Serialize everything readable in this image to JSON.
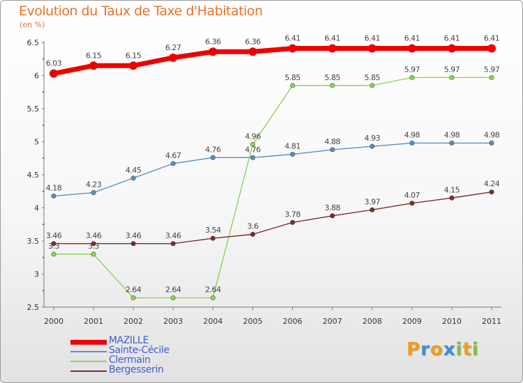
{
  "header": {
    "title": "Evolution du Taux de Taxe d'Habitation",
    "subtitle": "(en %)"
  },
  "logo": {
    "text": [
      "P",
      "r",
      "o",
      "x",
      "i",
      "t",
      "i"
    ],
    "colors": [
      "#f29a1d",
      "#3a8fd6",
      "#f29a1d",
      "#3a8fd6",
      "#7cc242",
      "#f29a1d",
      "#7cc242"
    ]
  },
  "chart_data": {
    "type": "line",
    "title": "Evolution du Taux de Taxe d'Habitation",
    "ylabel": "(en %)",
    "xlabel": "",
    "x": [
      "2000",
      "2001",
      "2002",
      "2003",
      "2004",
      "2005",
      "2006",
      "2007",
      "2008",
      "2009",
      "2010",
      "2011"
    ],
    "ylim": [
      2.5,
      6.5
    ],
    "yticks": [
      "2.5",
      "3",
      "3.5",
      "4",
      "4.5",
      "5",
      "5.5",
      "6",
      "6.5"
    ],
    "grid": false,
    "legend_position": "bottom-left",
    "series": [
      {
        "name": "MAZILLE",
        "color": "#ee0000",
        "highlight": true,
        "values": [
          6.03,
          6.15,
          6.15,
          6.27,
          6.36,
          6.36,
          6.41,
          6.41,
          6.41,
          6.41,
          6.41,
          6.41
        ],
        "labels": [
          "6.03",
          "6.15",
          "6.15",
          "6.27",
          "6.36",
          "6.36",
          "6.41",
          "6.41",
          "6.41",
          "6.41",
          "6.41",
          "6.41"
        ]
      },
      {
        "name": "Sainte-Cécile",
        "color": "#5b8fbf",
        "values": [
          4.18,
          4.23,
          4.45,
          4.67,
          4.76,
          4.76,
          4.81,
          4.88,
          4.93,
          4.98,
          4.98,
          4.98
        ],
        "labels": [
          "4.18",
          "4.23",
          "4.45",
          "4.67",
          "4.76",
          "4.76",
          "4.81",
          "4.88",
          "4.93",
          "4.98",
          "4.98",
          "4.98"
        ]
      },
      {
        "name": "Clermain",
        "color": "#8fd35a",
        "values": [
          3.3,
          3.3,
          2.64,
          2.64,
          2.64,
          4.96,
          5.85,
          5.85,
          5.85,
          5.97,
          5.97,
          5.97
        ],
        "labels": [
          "3.3",
          "3.3",
          "2.64",
          "2.64",
          "2.64",
          "4.96",
          "5.85",
          "5.85",
          "5.85",
          "5.97",
          "5.97",
          "5.97"
        ]
      },
      {
        "name": "Bergesserin",
        "color": "#7a2e2e",
        "values": [
          3.46,
          3.46,
          3.46,
          3.46,
          3.54,
          3.6,
          3.78,
          3.88,
          3.97,
          4.07,
          4.15,
          4.24
        ],
        "labels": [
          "3.46",
          "3.46",
          "3.46",
          "3.46",
          "3.54",
          "3.6",
          "3.78",
          "3.88",
          "3.97",
          "4.07",
          "4.15",
          "4.24"
        ]
      }
    ]
  }
}
